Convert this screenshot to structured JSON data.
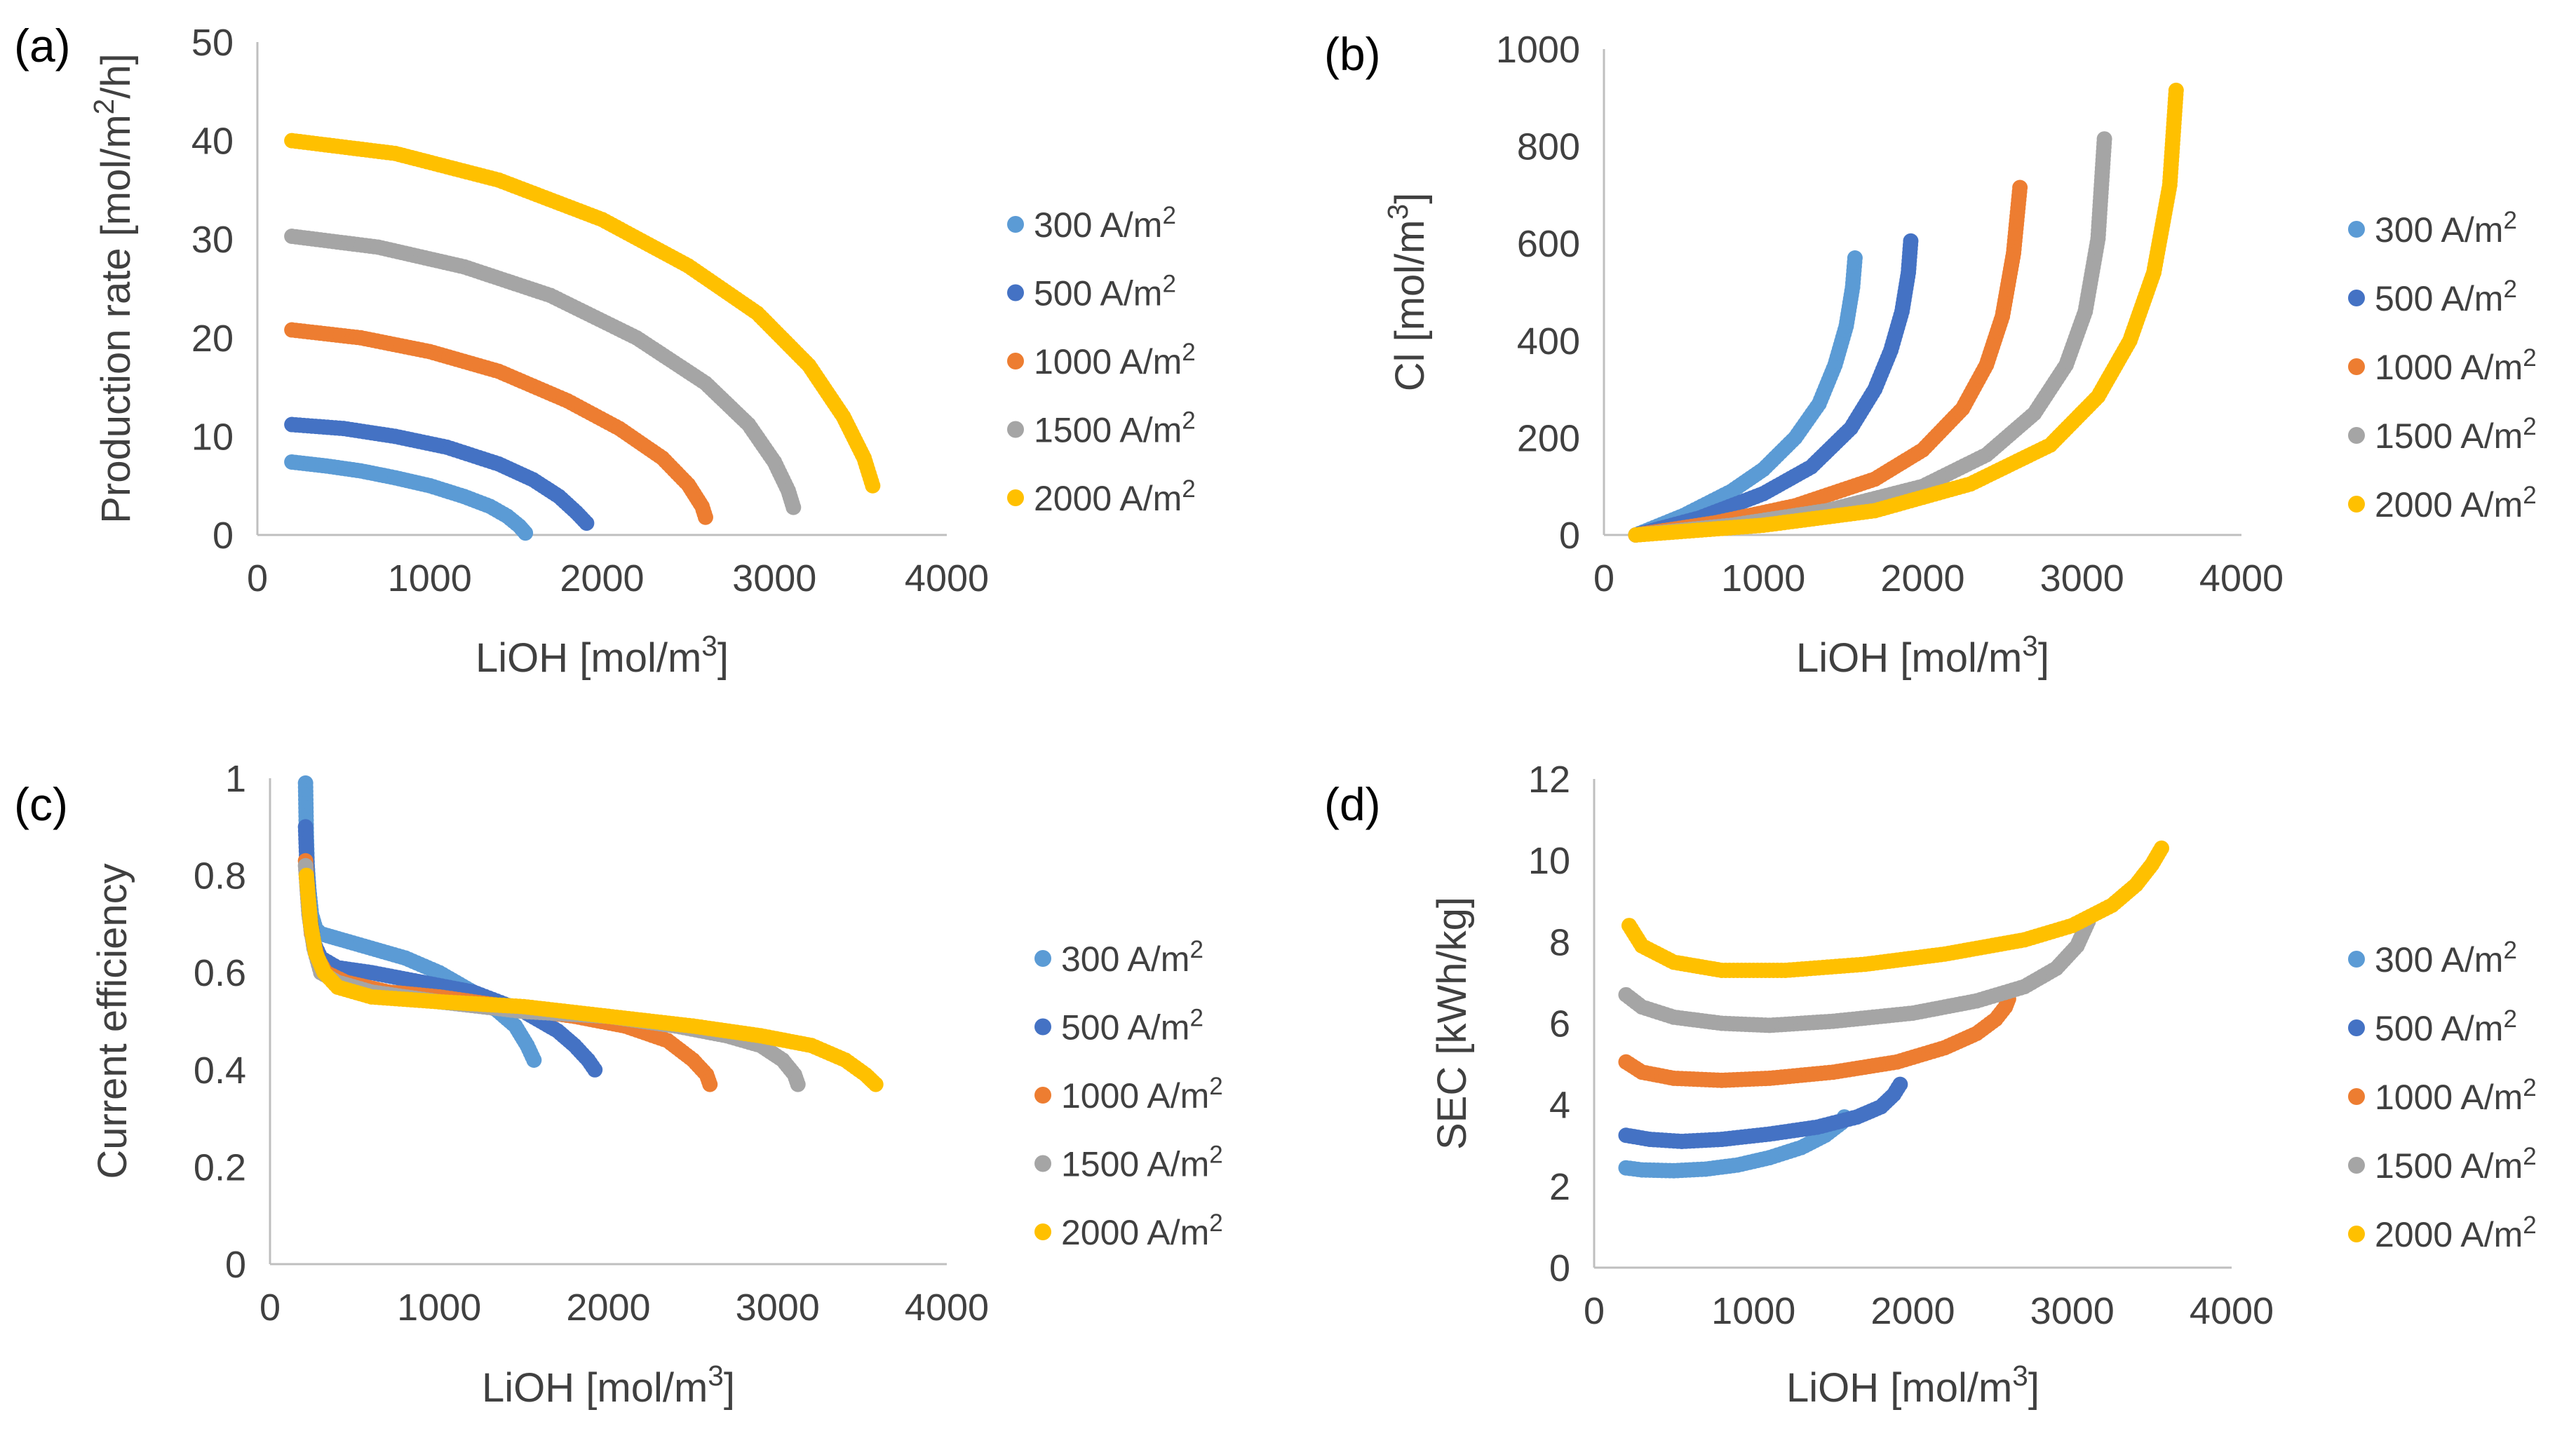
{
  "chart_data": [
    {
      "panel": "(a)",
      "type": "scatter",
      "xlabel": "LiOH [mol/m³]",
      "ylabel": "Production rate [mol/m²/h]",
      "xlim": [
        0,
        4000
      ],
      "ylim": [
        0,
        50
      ],
      "xticks": [
        "0",
        "1000",
        "2000",
        "3000",
        "4000"
      ],
      "yticks": [
        "0",
        "10",
        "20",
        "30",
        "40",
        "50"
      ],
      "legend_position": "right",
      "series": [
        {
          "name": "300 A/m²",
          "color": "#5B9BD5",
          "x": [
            200,
            400,
            600,
            800,
            1000,
            1200,
            1350,
            1450,
            1520,
            1555
          ],
          "y": [
            7.4,
            7.0,
            6.5,
            5.8,
            5.0,
            3.9,
            2.9,
            1.9,
            0.9,
            0.2
          ]
        },
        {
          "name": "500 A/m²",
          "color": "#4472C4",
          "x": [
            200,
            500,
            800,
            1100,
            1400,
            1600,
            1750,
            1850,
            1910
          ],
          "y": [
            11.2,
            10.8,
            10.0,
            8.9,
            7.2,
            5.6,
            3.9,
            2.3,
            1.2
          ]
        },
        {
          "name": "1000 A/m²",
          "color": "#ED7D31",
          "x": [
            200,
            600,
            1000,
            1400,
            1800,
            2100,
            2350,
            2500,
            2580,
            2600
          ],
          "y": [
            20.8,
            20.0,
            18.6,
            16.6,
            13.6,
            10.8,
            7.8,
            5.1,
            2.9,
            1.8
          ]
        },
        {
          "name": "1500 A/m²",
          "color": "#A5A5A5",
          "x": [
            200,
            700,
            1200,
            1700,
            2200,
            2600,
            2850,
            3000,
            3080,
            3110
          ],
          "y": [
            30.3,
            29.2,
            27.2,
            24.3,
            20.0,
            15.4,
            11.2,
            7.4,
            4.5,
            2.8
          ]
        },
        {
          "name": "2000 A/m²",
          "color": "#FFC000",
          "x": [
            200,
            800,
            1400,
            2000,
            2500,
            2900,
            3200,
            3400,
            3520,
            3570
          ],
          "y": [
            40.0,
            38.7,
            36.0,
            32.0,
            27.3,
            22.5,
            17.2,
            12.0,
            7.8,
            5.0
          ]
        }
      ]
    },
    {
      "panel": "(b)",
      "type": "scatter",
      "xlabel": "LiOH [mol/m³]",
      "ylabel": "Cl [mol/m³]",
      "xlim": [
        0,
        4000
      ],
      "ylim": [
        0,
        1000
      ],
      "xticks": [
        "0",
        "1000",
        "2000",
        "3000",
        "4000"
      ],
      "yticks": [
        "0",
        "200",
        "400",
        "600",
        "800",
        "1000"
      ],
      "legend_position": "right",
      "series": [
        {
          "name": "300 A/m²",
          "color": "#5B9BD5",
          "x": [
            200,
            500,
            800,
            1000,
            1200,
            1350,
            1450,
            1520,
            1560,
            1575
          ],
          "y": [
            0,
            40,
            90,
            135,
            200,
            270,
            350,
            430,
            510,
            570
          ]
        },
        {
          "name": "500 A/m²",
          "color": "#4472C4",
          "x": [
            200,
            600,
            1000,
            1300,
            1550,
            1700,
            1800,
            1870,
            1910,
            1925
          ],
          "y": [
            0,
            35,
            85,
            140,
            220,
            300,
            380,
            460,
            540,
            605
          ]
        },
        {
          "name": "1000 A/m²",
          "color": "#ED7D31",
          "x": [
            200,
            700,
            1200,
            1700,
            2000,
            2250,
            2400,
            2500,
            2570,
            2610
          ],
          "y": [
            0,
            25,
            60,
            115,
            175,
            260,
            350,
            450,
            580,
            715
          ]
        },
        {
          "name": "1500 A/m²",
          "color": "#A5A5A5",
          "x": [
            200,
            800,
            1400,
            2000,
            2400,
            2700,
            2900,
            3020,
            3100,
            3140
          ],
          "y": [
            0,
            20,
            50,
            100,
            165,
            250,
            350,
            460,
            610,
            815
          ]
        },
        {
          "name": "2000 A/m²",
          "color": "#FFC000",
          "x": [
            200,
            1000,
            1700,
            2300,
            2800,
            3100,
            3300,
            3450,
            3550,
            3590
          ],
          "y": [
            0,
            20,
            50,
            105,
            185,
            285,
            400,
            540,
            720,
            915
          ]
        }
      ]
    },
    {
      "panel": "(c)",
      "type": "scatter",
      "xlabel": "LiOH [mol/m³]",
      "ylabel": "Current efficiency",
      "xlim": [
        0,
        4000
      ],
      "ylim": [
        0,
        1
      ],
      "xticks": [
        "0",
        "1000",
        "2000",
        "3000",
        "4000"
      ],
      "yticks": [
        "0",
        "0.2",
        "0.4",
        "0.6",
        "0.8",
        "1"
      ],
      "legend_position": "right",
      "series": [
        {
          "name": "300 A/m²",
          "color": "#5B9BD5",
          "x": [
            210,
            215,
            220,
            230,
            245,
            270,
            300,
            400,
            600,
            800,
            1000,
            1200,
            1350,
            1450,
            1520,
            1560
          ],
          "y": [
            0.99,
            0.88,
            0.82,
            0.77,
            0.72,
            0.69,
            0.68,
            0.67,
            0.65,
            0.63,
            0.6,
            0.56,
            0.52,
            0.49,
            0.45,
            0.42
          ]
        },
        {
          "name": "500 A/m²",
          "color": "#4472C4",
          "x": [
            210,
            220,
            235,
            260,
            300,
            400,
            600,
            900,
            1200,
            1500,
            1700,
            1800,
            1880,
            1920
          ],
          "y": [
            0.9,
            0.8,
            0.72,
            0.66,
            0.63,
            0.61,
            0.6,
            0.58,
            0.56,
            0.52,
            0.48,
            0.45,
            0.42,
            0.4
          ]
        },
        {
          "name": "1000 A/m²",
          "color": "#ED7D31",
          "x": [
            210,
            225,
            245,
            280,
            330,
            450,
            700,
            1000,
            1400,
            1800,
            2100,
            2350,
            2500,
            2580,
            2600
          ],
          "y": [
            0.83,
            0.75,
            0.68,
            0.63,
            0.6,
            0.58,
            0.56,
            0.55,
            0.53,
            0.51,
            0.49,
            0.46,
            0.42,
            0.39,
            0.37
          ]
        },
        {
          "name": "1500 A/m²",
          "color": "#A5A5A5",
          "x": [
            210,
            230,
            260,
            300,
            400,
            600,
            1000,
            1500,
            2000,
            2400,
            2700,
            2900,
            3030,
            3100,
            3120
          ],
          "y": [
            0.82,
            0.72,
            0.65,
            0.6,
            0.58,
            0.56,
            0.54,
            0.52,
            0.51,
            0.49,
            0.47,
            0.45,
            0.42,
            0.39,
            0.37
          ]
        },
        {
          "name": "2000 A/m²",
          "color": "#FFC000",
          "x": [
            215,
            240,
            270,
            320,
            400,
            600,
            1000,
            1500,
            2000,
            2500,
            2900,
            3200,
            3400,
            3520,
            3580
          ],
          "y": [
            0.8,
            0.7,
            0.64,
            0.6,
            0.57,
            0.55,
            0.54,
            0.53,
            0.51,
            0.49,
            0.47,
            0.45,
            0.42,
            0.39,
            0.37
          ]
        }
      ]
    },
    {
      "panel": "(d)",
      "type": "scatter",
      "xlabel": "LiOH [mol/m³]",
      "ylabel": "SEC [kWh/kg]",
      "xlim": [
        0,
        4000
      ],
      "ylim": [
        0,
        12
      ],
      "xticks": [
        "0",
        "1000",
        "2000",
        "3000",
        "4000"
      ],
      "yticks": [
        "0",
        "2",
        "4",
        "6",
        "8",
        "10",
        "12"
      ],
      "legend_position": "right",
      "series": [
        {
          "name": "300 A/m²",
          "color": "#5B9BD5",
          "x": [
            200,
            300,
            500,
            700,
            900,
            1100,
            1300,
            1450,
            1550,
            1570
          ],
          "y": [
            2.45,
            2.4,
            2.38,
            2.42,
            2.52,
            2.7,
            2.95,
            3.25,
            3.55,
            3.7
          ]
        },
        {
          "name": "500 A/m²",
          "color": "#4472C4",
          "x": [
            200,
            350,
            550,
            800,
            1100,
            1400,
            1650,
            1800,
            1880,
            1920
          ],
          "y": [
            3.25,
            3.15,
            3.1,
            3.15,
            3.28,
            3.45,
            3.7,
            3.95,
            4.25,
            4.5
          ]
        },
        {
          "name": "1000 A/m²",
          "color": "#ED7D31",
          "x": [
            200,
            300,
            500,
            800,
            1100,
            1500,
            1900,
            2200,
            2400,
            2520,
            2580,
            2600
          ],
          "y": [
            5.05,
            4.8,
            4.65,
            4.6,
            4.65,
            4.8,
            5.05,
            5.4,
            5.75,
            6.1,
            6.4,
            6.6
          ]
        },
        {
          "name": "1500 A/m²",
          "color": "#A5A5A5",
          "x": [
            200,
            300,
            500,
            800,
            1100,
            1500,
            2000,
            2400,
            2700,
            2900,
            3030,
            3100
          ],
          "y": [
            6.7,
            6.4,
            6.15,
            6.0,
            5.95,
            6.05,
            6.25,
            6.55,
            6.9,
            7.35,
            7.9,
            8.5
          ]
        },
        {
          "name": "2000 A/m²",
          "color": "#FFC000",
          "x": [
            220,
            300,
            500,
            800,
            1200,
            1700,
            2200,
            2700,
            3000,
            3250,
            3400,
            3500,
            3560
          ],
          "y": [
            8.4,
            7.9,
            7.5,
            7.3,
            7.3,
            7.45,
            7.7,
            8.05,
            8.4,
            8.9,
            9.4,
            9.9,
            10.3
          ]
        }
      ]
    }
  ]
}
